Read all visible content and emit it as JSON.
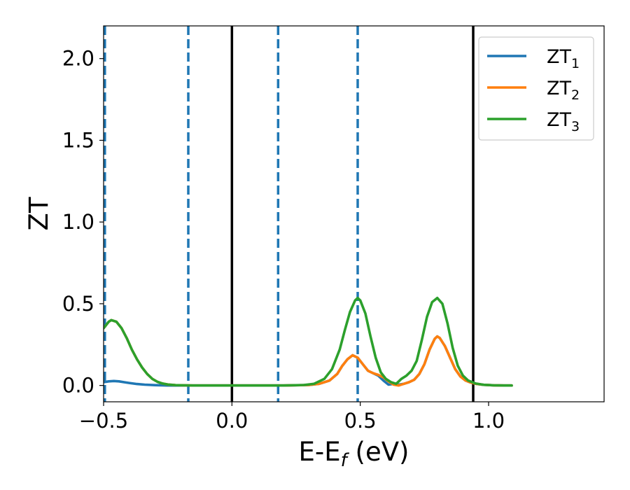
{
  "chart_data": {
    "type": "line",
    "xlabel": "E-E",
    "xlabel_sub": "f",
    "xlabel_unit": " (eV)",
    "ylabel": "ZT",
    "xlim": [
      -0.5,
      1.45
    ],
    "ylim": [
      -0.1,
      2.2
    ],
    "x_ticks": [
      -0.5,
      0.0,
      0.5,
      1.0
    ],
    "x_tick_labels": [
      "−0.5",
      "0.0",
      "0.5",
      "1.0"
    ],
    "y_ticks": [
      0.0,
      0.5,
      1.0,
      1.5,
      2.0
    ],
    "y_tick_labels": [
      "0.0",
      "0.5",
      "1.0",
      "1.5",
      "2.0"
    ],
    "grid": false,
    "legend": {
      "position": "top-right",
      "entries": [
        {
          "base": "ZT",
          "sub": "1"
        },
        {
          "base": "ZT",
          "sub": "2"
        },
        {
          "base": "ZT",
          "sub": "3"
        }
      ]
    },
    "vlines": [
      {
        "x": -0.495,
        "style": "dashed",
        "color": "#1f77b4"
      },
      {
        "x": -0.17,
        "style": "dashed",
        "color": "#1f77b4"
      },
      {
        "x": 0.0,
        "style": "solid",
        "color": "#000000"
      },
      {
        "x": 0.18,
        "style": "dashed",
        "color": "#1f77b4"
      },
      {
        "x": 0.49,
        "style": "dashed",
        "color": "#1f77b4"
      },
      {
        "x": 0.94,
        "style": "solid",
        "color": "#000000"
      }
    ],
    "series": [
      {
        "color": "#1f77b4",
        "x": [
          -0.5,
          -0.48,
          -0.46,
          -0.44,
          -0.42,
          -0.4,
          -0.37,
          -0.34,
          -0.3,
          -0.25,
          -0.2,
          -0.15,
          -0.1,
          0.0,
          0.1,
          0.2,
          0.3,
          0.34,
          0.38,
          0.41,
          0.43,
          0.45,
          0.47,
          0.49,
          0.51,
          0.53,
          0.55,
          0.57,
          0.59,
          0.61,
          0.63,
          0.65,
          0.67,
          0.69,
          0.71,
          0.73,
          0.75,
          0.77,
          0.79,
          0.8,
          0.81,
          0.83,
          0.85,
          0.87,
          0.89,
          0.91,
          0.93,
          0.95,
          0.98,
          1.02,
          1.06,
          1.09
        ],
        "y": [
          0.02,
          0.025,
          0.027,
          0.025,
          0.02,
          0.015,
          0.009,
          0.005,
          0.002,
          0.0,
          0.0,
          0.0,
          0.0,
          0.0,
          0.0,
          0.0,
          0.003,
          0.01,
          0.03,
          0.07,
          0.12,
          0.16,
          0.185,
          0.17,
          0.13,
          0.09,
          0.075,
          0.06,
          0.03,
          0.005,
          0.01,
          0.005,
          0.01,
          0.02,
          0.035,
          0.07,
          0.13,
          0.22,
          0.285,
          0.3,
          0.29,
          0.24,
          0.17,
          0.1,
          0.055,
          0.03,
          0.018,
          0.01,
          0.004,
          0.001,
          0.0,
          0.0
        ]
      },
      {
        "color": "#ff7f0e",
        "x": [
          -0.5,
          -0.48,
          -0.47,
          -0.45,
          -0.43,
          -0.41,
          -0.39,
          -0.37,
          -0.35,
          -0.33,
          -0.31,
          -0.29,
          -0.27,
          -0.25,
          -0.22,
          -0.19,
          -0.15,
          -0.1,
          0.0,
          0.1,
          0.2,
          0.3,
          0.34,
          0.38,
          0.41,
          0.43,
          0.45,
          0.47,
          0.49,
          0.51,
          0.53,
          0.55,
          0.57,
          0.59,
          0.61,
          0.63,
          0.65,
          0.67,
          0.69,
          0.71,
          0.73,
          0.75,
          0.77,
          0.79,
          0.8,
          0.81,
          0.83,
          0.85,
          0.87,
          0.89,
          0.91,
          0.93,
          0.95,
          0.98,
          1.02,
          1.06,
          1.09
        ],
        "y": [
          0.35,
          0.39,
          0.4,
          0.39,
          0.35,
          0.29,
          0.22,
          0.16,
          0.11,
          0.07,
          0.04,
          0.022,
          0.012,
          0.006,
          0.002,
          0.001,
          0.0,
          0.0,
          0.0,
          0.0,
          0.0,
          0.003,
          0.01,
          0.03,
          0.07,
          0.12,
          0.16,
          0.185,
          0.17,
          0.13,
          0.09,
          0.075,
          0.065,
          0.05,
          0.025,
          0.005,
          0.0,
          0.01,
          0.02,
          0.035,
          0.07,
          0.13,
          0.22,
          0.285,
          0.3,
          0.29,
          0.24,
          0.17,
          0.1,
          0.055,
          0.03,
          0.018,
          0.01,
          0.004,
          0.001,
          0.0,
          0.0
        ]
      },
      {
        "color": "#2ca02c",
        "x": [
          -0.5,
          -0.48,
          -0.47,
          -0.45,
          -0.43,
          -0.41,
          -0.39,
          -0.37,
          -0.35,
          -0.33,
          -0.31,
          -0.29,
          -0.27,
          -0.25,
          -0.22,
          -0.19,
          -0.15,
          -0.1,
          0.0,
          0.1,
          0.2,
          0.28,
          0.32,
          0.36,
          0.39,
          0.42,
          0.44,
          0.46,
          0.48,
          0.49,
          0.5,
          0.52,
          0.54,
          0.56,
          0.58,
          0.6,
          0.62,
          0.64,
          0.66,
          0.68,
          0.7,
          0.72,
          0.74,
          0.76,
          0.78,
          0.8,
          0.82,
          0.84,
          0.86,
          0.88,
          0.9,
          0.92,
          0.95,
          0.98,
          1.02,
          1.06,
          1.09
        ],
        "y": [
          0.35,
          0.39,
          0.4,
          0.39,
          0.35,
          0.29,
          0.22,
          0.16,
          0.11,
          0.07,
          0.04,
          0.022,
          0.012,
          0.006,
          0.002,
          0.001,
          0.0,
          0.0,
          0.0,
          0.0,
          0.0,
          0.003,
          0.01,
          0.04,
          0.1,
          0.22,
          0.34,
          0.45,
          0.52,
          0.535,
          0.52,
          0.44,
          0.3,
          0.17,
          0.08,
          0.04,
          0.02,
          0.01,
          0.04,
          0.06,
          0.09,
          0.15,
          0.28,
          0.42,
          0.51,
          0.535,
          0.5,
          0.38,
          0.23,
          0.12,
          0.06,
          0.03,
          0.012,
          0.004,
          0.001,
          0.0,
          0.0
        ]
      }
    ]
  }
}
